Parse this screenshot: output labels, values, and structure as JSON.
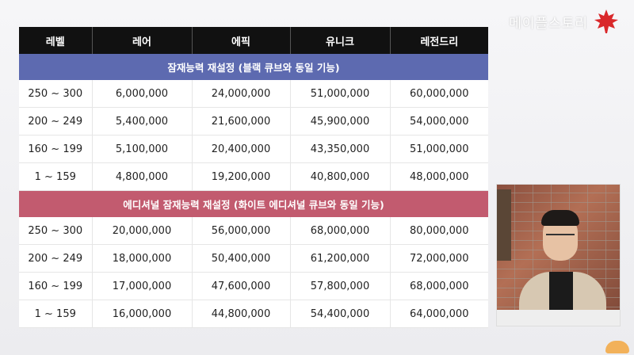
{
  "logo": {
    "text": "메이플스토리"
  },
  "table": {
    "headers": [
      "레벨",
      "레어",
      "에픽",
      "유니크",
      "레전드리"
    ],
    "sections": [
      {
        "title": "잠재능력 재설정 (블랙 큐브와 동일 기능)",
        "color": "#5d6ab0",
        "rows": [
          [
            "250 ~ 300",
            "6,000,000",
            "24,000,000",
            "51,000,000",
            "60,000,000"
          ],
          [
            "200 ~ 249",
            "5,400,000",
            "21,600,000",
            "45,900,000",
            "54,000,000"
          ],
          [
            "160 ~ 199",
            "5,100,000",
            "20,400,000",
            "43,350,000",
            "51,000,000"
          ],
          [
            "1 ~ 159",
            "4,800,000",
            "19,200,000",
            "40,800,000",
            "48,000,000"
          ]
        ]
      },
      {
        "title": "에디셔널 잠재능력 재설정 (화이트 에디셔널 큐브와 동일 기능)",
        "color": "#c25b6f",
        "rows": [
          [
            "250 ~ 300",
            "20,000,000",
            "56,000,000",
            "68,000,000",
            "80,000,000"
          ],
          [
            "200 ~ 249",
            "18,000,000",
            "50,400,000",
            "61,200,000",
            "72,000,000"
          ],
          [
            "160 ~ 199",
            "17,000,000",
            "47,600,000",
            "57,800,000",
            "68,000,000"
          ],
          [
            "1 ~ 159",
            "16,000,000",
            "44,800,000",
            "54,400,000",
            "64,000,000"
          ]
        ]
      }
    ]
  }
}
